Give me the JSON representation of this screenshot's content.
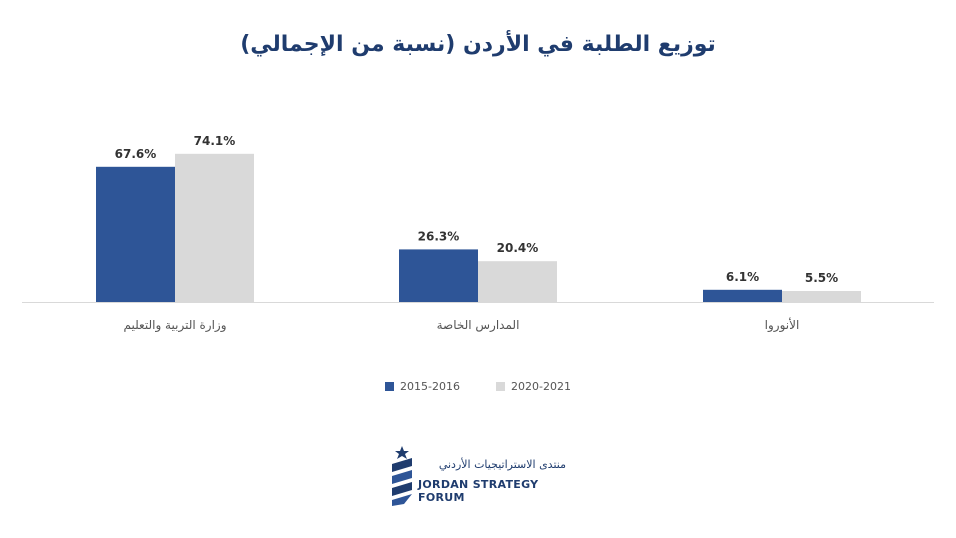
{
  "chart_data": {
    "type": "bar",
    "title": "توزيع الطلبة في الأردن (نسبة من الإجمالي)",
    "categories": [
      "وزارة التربية والتعليم",
      "المدارس الخاصة",
      "الأنوروا"
    ],
    "series": [
      {
        "name": "2015-2016",
        "values": [
          67.6,
          26.3,
          6.1
        ],
        "labels": [
          "67.6%",
          "26.3%",
          "6.1%"
        ],
        "color": "#2e5597"
      },
      {
        "name": "2020-2021",
        "values": [
          74.1,
          20.4,
          5.5
        ],
        "labels": [
          "74.1%",
          "20.4%",
          "5.5%"
        ],
        "color": "#d9d9d9"
      }
    ],
    "ylim": [
      0,
      80
    ],
    "grid": false,
    "legend_position": "bottom"
  },
  "branding": {
    "arabic_name": "منتدى الاستراتيجيات الأردني",
    "english_name": "JORDAN STRATEGY FORUM",
    "icon": "jsf-logo-icon",
    "color": "#1f3c6e"
  }
}
